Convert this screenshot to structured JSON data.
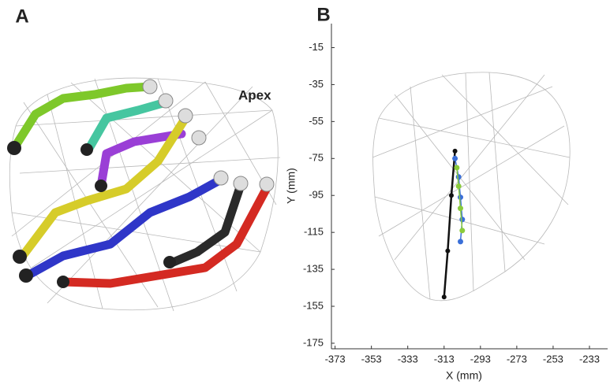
{
  "panel_labels": [
    "A",
    "B"
  ],
  "annotation": "Apex",
  "chart_data": {
    "type": "line",
    "xlabel": "X (mm)",
    "ylabel": "Y (mm)",
    "xlim": [
      -375,
      -223
    ],
    "ylim": [
      -178,
      -2
    ],
    "xticks": [
      -373,
      -353,
      -333,
      -313,
      -293,
      -273,
      -253,
      -233
    ],
    "yticks": [
      -15,
      -35,
      -55,
      -75,
      -95,
      -115,
      -135,
      -155,
      -175
    ],
    "series": [
      {
        "color": "#111111",
        "x": [
          -307,
          -309,
          -311,
          -313
        ],
        "values": [
          -71,
          -95,
          -125,
          -150
        ]
      },
      {
        "color": "#3a6fd8",
        "x": [
          -307,
          -305,
          -304,
          -303,
          -304
        ],
        "values": [
          -75,
          -85,
          -96,
          -108,
          -120
        ]
      },
      {
        "color": "#8acb3c",
        "x": [
          -306,
          -305,
          -304,
          -303
        ],
        "values": [
          -80,
          -90,
          -102,
          -114
        ]
      }
    ]
  }
}
